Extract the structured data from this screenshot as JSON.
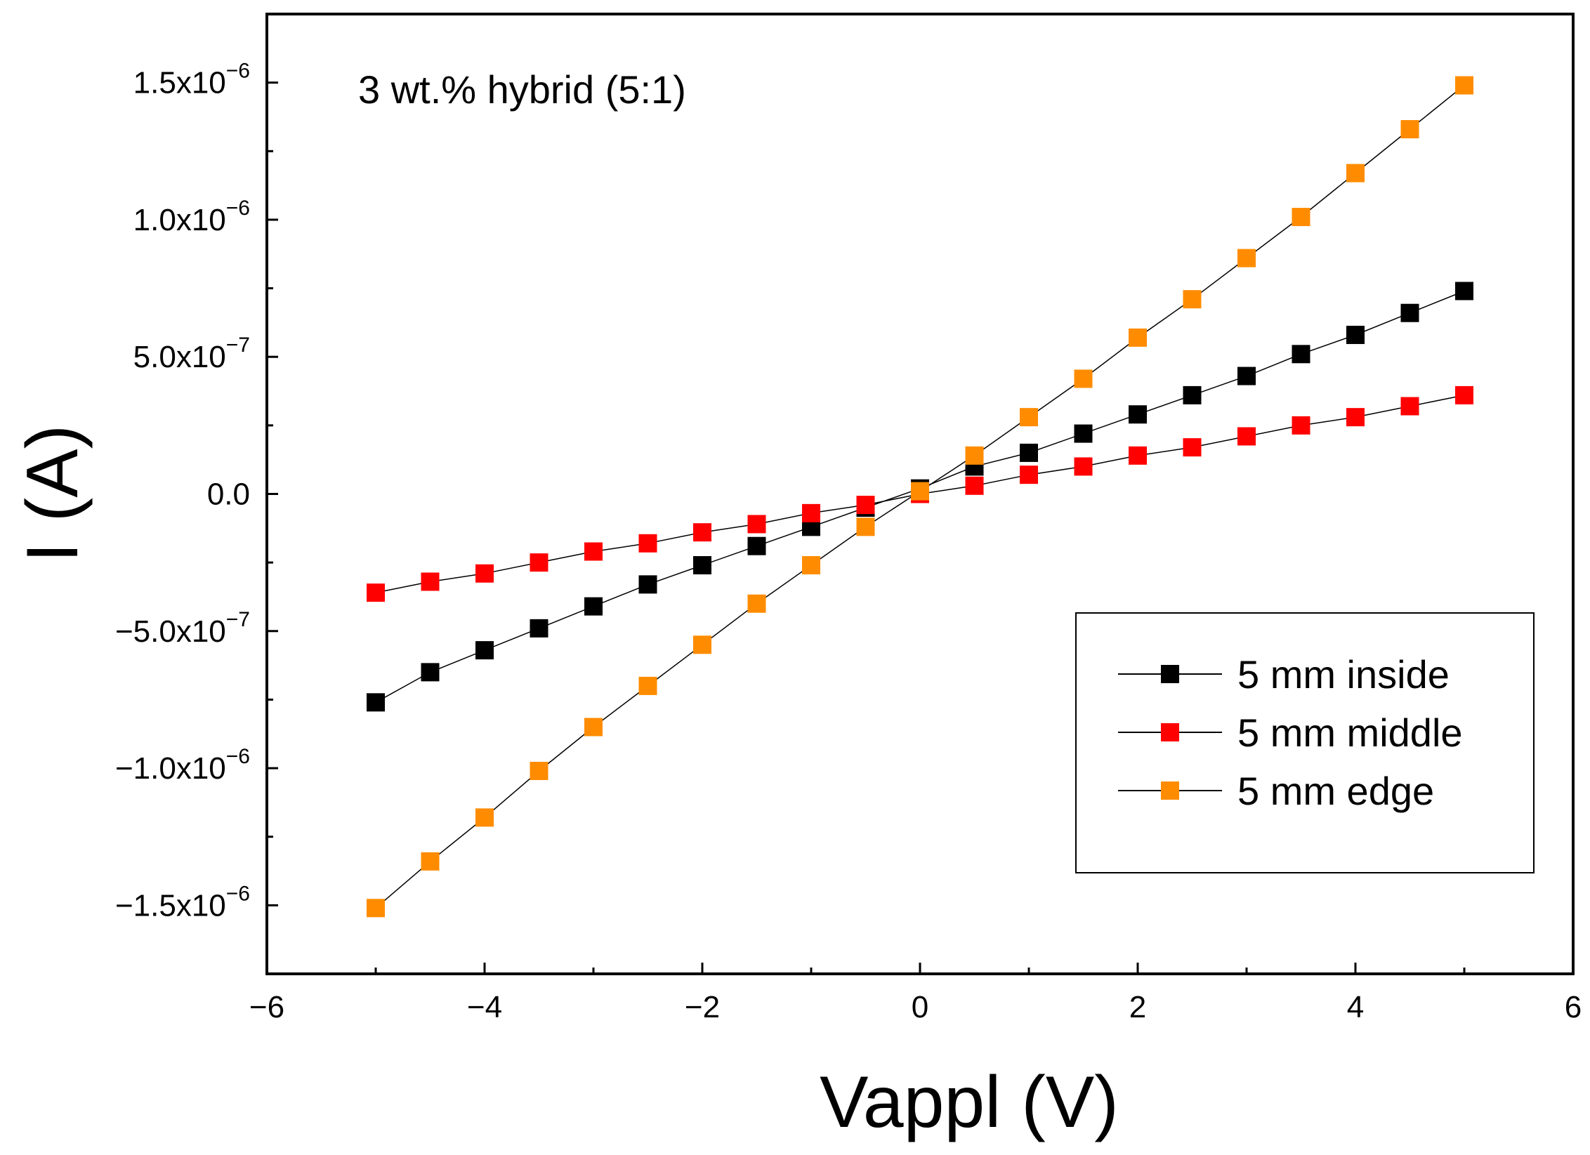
{
  "chart_data": {
    "type": "line",
    "title": "",
    "annotation": "3 wt.% hybrid (5:1)",
    "xlabel": "Vappl (V)",
    "ylabel": "I (A)",
    "xlim": [
      -6,
      6
    ],
    "ylim": [
      -1.75e-06,
      1.75e-06
    ],
    "xticks": [
      -6,
      -4,
      -2,
      0,
      2,
      4,
      6
    ],
    "xtick_labels": [
      "−6",
      "−4",
      "−2",
      "0",
      "2",
      "4",
      "6"
    ],
    "yticks": [
      {
        "value": 1.5e-06,
        "mantissa": "1.5x10",
        "exp": "−6"
      },
      {
        "value": 1e-06,
        "mantissa": "1.0x10",
        "exp": "−6"
      },
      {
        "value": 5e-07,
        "mantissa": "5.0x10",
        "exp": "−7"
      },
      {
        "value": 0,
        "mantissa": "0.0",
        "exp": ""
      },
      {
        "value": -5e-07,
        "mantissa": "−5.0x10",
        "exp": "−7"
      },
      {
        "value": -1e-06,
        "mantissa": "−1.0x10",
        "exp": "−6"
      },
      {
        "value": -1.5e-06,
        "mantissa": "−1.5x10",
        "exp": "−6"
      }
    ],
    "x": [
      -5,
      -4.5,
      -4,
      -3.5,
      -3,
      -2.5,
      -2,
      -1.5,
      -1,
      -0.5,
      0,
      0.5,
      1,
      1.5,
      2,
      2.5,
      3,
      3.5,
      4,
      4.5,
      5
    ],
    "series": [
      {
        "name": "5 mm inside",
        "color": "#000000",
        "values": [
          -7.6e-07,
          -6.5e-07,
          -5.7e-07,
          -4.9e-07,
          -4.1e-07,
          -3.3e-07,
          -2.6e-07,
          -1.9e-07,
          -1.2e-07,
          -5e-08,
          2e-08,
          1e-07,
          1.5e-07,
          2.2e-07,
          2.9e-07,
          3.6e-07,
          4.3e-07,
          5.1e-07,
          5.8e-07,
          6.6e-07,
          7.4e-07
        ]
      },
      {
        "name": "5 mm middle",
        "color": "#ff0000",
        "values": [
          -3.6e-07,
          -3.2e-07,
          -2.9e-07,
          -2.5e-07,
          -2.1e-07,
          -1.8e-07,
          -1.4e-07,
          -1.1e-07,
          -7e-08,
          -4e-08,
          0.0,
          3e-08,
          7e-08,
          1e-07,
          1.4e-07,
          1.7e-07,
          2.1e-07,
          2.5e-07,
          2.8e-07,
          3.2e-07,
          3.6e-07
        ]
      },
      {
        "name": "5 mm edge",
        "color": "#ff8c00",
        "values": [
          -1.51e-06,
          -1.34e-06,
          -1.18e-06,
          -1.01e-06,
          -8.5e-07,
          -7e-07,
          -5.5e-07,
          -4e-07,
          -2.6e-07,
          -1.2e-07,
          1e-08,
          1.4e-07,
          2.8e-07,
          4.2e-07,
          5.7e-07,
          7.1e-07,
          8.6e-07,
          1.01e-06,
          1.17e-06,
          1.33e-06,
          1.49e-06
        ]
      }
    ],
    "legend_position": "lower-right",
    "grid": false
  }
}
